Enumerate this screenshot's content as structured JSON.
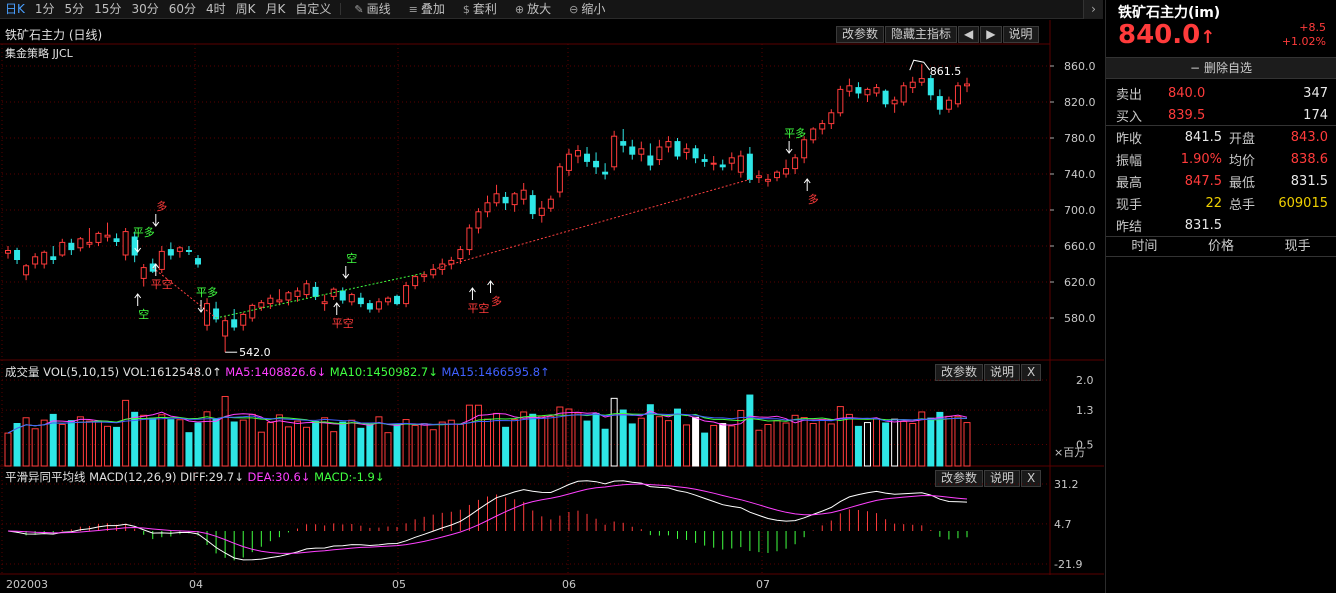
{
  "toolbar": {
    "periods": [
      "日K",
      "1分",
      "5分",
      "15分",
      "30分",
      "60分",
      "4时",
      "周K",
      "月K",
      "自定义"
    ],
    "active_period": "日K",
    "tools": [
      {
        "icon": "pencil-icon",
        "label": "画线"
      },
      {
        "icon": "layers-icon",
        "label": "叠加"
      },
      {
        "icon": "moneybag-icon",
        "label": "套利"
      },
      {
        "icon": "zoom-in-icon",
        "label": "放大"
      },
      {
        "icon": "zoom-out-icon",
        "label": "缩小"
      }
    ],
    "more_arrow": "›"
  },
  "main_chart": {
    "title": "铁矿石主力 (日线)",
    "strategy": "集金策略 JJCL",
    "buttons": {
      "params": "改参数",
      "hide_main": "隐藏主指标",
      "prev": "◀",
      "next": "▶",
      "help": "说明"
    },
    "high_label": "861.5",
    "low_label": "542.0",
    "y_ticks": [
      "860.0",
      "820.0",
      "780.0",
      "740.0",
      "700.0",
      "660.0",
      "620.0",
      "580.0"
    ],
    "signals": [
      "多",
      "平多",
      "平空",
      "空",
      "平多",
      "空",
      "平空",
      "平空",
      "多",
      "平多",
      "多"
    ]
  },
  "volume_chart": {
    "title": "成交量",
    "indicator": "VOL(5,10,15)",
    "vol": "VOL:1612548.0↑",
    "ma5": "MA5:1408826.6↓",
    "ma10": "MA10:1450982.7↓",
    "ma15": "MA15:1466595.8↑",
    "buttons": {
      "params": "改参数",
      "help": "说明",
      "close": "X"
    },
    "y_ticks": [
      "2.0",
      "1.3",
      "0.5"
    ],
    "unit": "×百万",
    "colors": {
      "ma5": "#ff40ff",
      "ma10": "#40ff40",
      "ma15": "#4060ff"
    }
  },
  "macd_chart": {
    "title": "平滑异同平均线",
    "indicator": "MACD(12,26,9)",
    "diff": "DIFF:29.7↓",
    "dea": "DEA:30.6↓",
    "macd": "MACD:-1.9↓",
    "buttons": {
      "params": "改参数",
      "help": "说明",
      "close": "X"
    },
    "y_ticks": [
      "31.2",
      "4.7",
      "-21.9"
    ]
  },
  "x_axis": {
    "labels": [
      "202003",
      "04",
      "05",
      "06",
      "07"
    ]
  },
  "quote": {
    "name": "铁矿石主力(im)",
    "price": "840.0",
    "arrow": "↑",
    "change": "+8.5",
    "change_pct": "+1.02%",
    "remove_watch": "删除自选",
    "sell_label": "卖出",
    "sell_price": "840.0",
    "sell_vol": "347",
    "buy_label": "买入",
    "buy_price": "839.5",
    "buy_vol": "174",
    "prev_close_label": "昨收",
    "prev_close": "841.5",
    "open_label": "开盘",
    "open": "843.0",
    "amplitude_label": "振幅",
    "amplitude": "1.90%",
    "avg_label": "均价",
    "avg": "838.6",
    "high_label": "最高",
    "high": "847.5",
    "low_label": "最低",
    "low": "831.5",
    "cur_vol_label": "现手",
    "cur_vol": "22",
    "total_vol_label": "总手",
    "total_vol": "609015",
    "prev_settle_label": "昨结",
    "prev_settle": "831.5",
    "ticks_headers": [
      "时间",
      "价格",
      "现手"
    ]
  },
  "colors": {
    "up": "#ff3b3b",
    "down": "#2ee6e6",
    "grid": "#5a0000",
    "accent": "#4aa0ff"
  },
  "chart_data": {
    "type": "candlestick",
    "title": "铁矿石主力 (日线)",
    "x_labels": [
      "202003",
      "04",
      "05",
      "06",
      "07"
    ],
    "ylim": [
      540,
      870
    ],
    "y_ticks": [
      860,
      820,
      780,
      740,
      700,
      660,
      620,
      580
    ],
    "ohlc": [
      [
        652,
        660,
        646,
        655
      ],
      [
        655,
        658,
        640,
        645
      ],
      [
        628,
        640,
        622,
        638
      ],
      [
        640,
        652,
        635,
        648
      ],
      [
        640,
        655,
        635,
        653
      ],
      [
        648,
        660,
        640,
        645
      ],
      [
        650,
        668,
        648,
        664
      ],
      [
        663,
        668,
        650,
        656
      ],
      [
        658,
        670,
        654,
        668
      ],
      [
        662,
        680,
        658,
        664
      ],
      [
        664,
        676,
        660,
        674
      ],
      [
        670,
        686,
        665,
        672
      ],
      [
        668,
        674,
        660,
        665
      ],
      [
        650,
        680,
        644,
        676
      ],
      [
        670,
        676,
        642,
        650
      ],
      [
        624,
        640,
        615,
        636
      ],
      [
        640,
        646,
        630,
        632
      ],
      [
        634,
        660,
        630,
        654
      ],
      [
        656,
        664,
        645,
        650
      ],
      [
        654,
        660,
        647,
        658
      ],
      [
        655,
        660,
        650,
        654
      ],
      [
        646,
        650,
        636,
        640
      ],
      [
        572,
        602,
        566,
        596
      ],
      [
        590,
        598,
        575,
        579
      ],
      [
        560,
        582,
        542,
        577
      ],
      [
        578,
        590,
        566,
        570
      ],
      [
        572,
        586,
        566,
        584
      ],
      [
        580,
        596,
        576,
        594
      ],
      [
        592,
        600,
        588,
        597
      ],
      [
        596,
        606,
        590,
        602
      ],
      [
        598,
        612,
        594,
        600
      ],
      [
        600,
        610,
        594,
        608
      ],
      [
        604,
        614,
        598,
        610
      ],
      [
        606,
        622,
        602,
        618
      ],
      [
        614,
        620,
        600,
        604
      ],
      [
        596,
        606,
        588,
        598
      ],
      [
        604,
        614,
        600,
        612
      ],
      [
        610,
        614,
        596,
        600
      ],
      [
        598,
        608,
        594,
        606
      ],
      [
        602,
        608,
        592,
        596
      ],
      [
        596,
        600,
        586,
        590
      ],
      [
        590,
        602,
        586,
        598
      ],
      [
        598,
        604,
        594,
        602
      ],
      [
        604,
        606,
        594,
        596
      ],
      [
        596,
        620,
        592,
        616
      ],
      [
        616,
        628,
        612,
        626
      ],
      [
        626,
        632,
        620,
        628
      ],
      [
        628,
        640,
        624,
        634
      ],
      [
        634,
        646,
        628,
        640
      ],
      [
        640,
        648,
        634,
        644
      ],
      [
        646,
        660,
        640,
        656
      ],
      [
        656,
        684,
        650,
        680
      ],
      [
        680,
        702,
        674,
        698
      ],
      [
        698,
        716,
        692,
        708
      ],
      [
        708,
        728,
        704,
        718
      ],
      [
        714,
        720,
        700,
        708
      ],
      [
        706,
        720,
        698,
        718
      ],
      [
        712,
        730,
        706,
        722
      ],
      [
        716,
        722,
        690,
        696
      ],
      [
        694,
        710,
        686,
        702
      ],
      [
        702,
        716,
        698,
        712
      ],
      [
        720,
        752,
        714,
        748
      ],
      [
        744,
        768,
        738,
        762
      ],
      [
        760,
        772,
        752,
        766
      ],
      [
        762,
        770,
        748,
        754
      ],
      [
        754,
        764,
        740,
        748
      ],
      [
        742,
        752,
        734,
        740
      ],
      [
        748,
        788,
        744,
        782
      ],
      [
        776,
        790,
        764,
        772
      ],
      [
        770,
        778,
        756,
        762
      ],
      [
        762,
        776,
        754,
        768
      ],
      [
        760,
        774,
        744,
        750
      ],
      [
        756,
        778,
        750,
        770
      ],
      [
        770,
        782,
        764,
        776
      ],
      [
        776,
        780,
        756,
        760
      ],
      [
        764,
        774,
        756,
        768
      ],
      [
        768,
        772,
        752,
        758
      ],
      [
        756,
        762,
        748,
        754
      ],
      [
        752,
        760,
        744,
        752
      ],
      [
        750,
        756,
        744,
        748
      ],
      [
        752,
        764,
        744,
        758
      ],
      [
        742,
        766,
        736,
        760
      ],
      [
        762,
        770,
        730,
        734
      ],
      [
        736,
        744,
        730,
        738
      ],
      [
        732,
        740,
        726,
        734
      ],
      [
        736,
        744,
        732,
        742
      ],
      [
        740,
        756,
        736,
        746
      ],
      [
        746,
        762,
        740,
        758
      ],
      [
        758,
        782,
        752,
        778
      ],
      [
        778,
        792,
        774,
        790
      ],
      [
        790,
        800,
        784,
        796
      ],
      [
        796,
        812,
        790,
        808
      ],
      [
        808,
        838,
        804,
        834
      ],
      [
        832,
        846,
        826,
        838
      ],
      [
        836,
        842,
        824,
        830
      ],
      [
        828,
        836,
        820,
        834
      ],
      [
        830,
        840,
        826,
        836
      ],
      [
        832,
        834,
        814,
        818
      ],
      [
        818,
        826,
        808,
        822
      ],
      [
        820,
        842,
        816,
        838
      ],
      [
        836,
        848,
        830,
        842
      ],
      [
        842,
        862,
        838,
        846
      ],
      [
        846,
        850,
        822,
        828
      ],
      [
        826,
        834,
        806,
        812
      ],
      [
        812,
        826,
        808,
        822
      ],
      [
        818,
        842,
        814,
        838
      ],
      [
        838,
        847,
        831,
        840
      ]
    ]
  }
}
